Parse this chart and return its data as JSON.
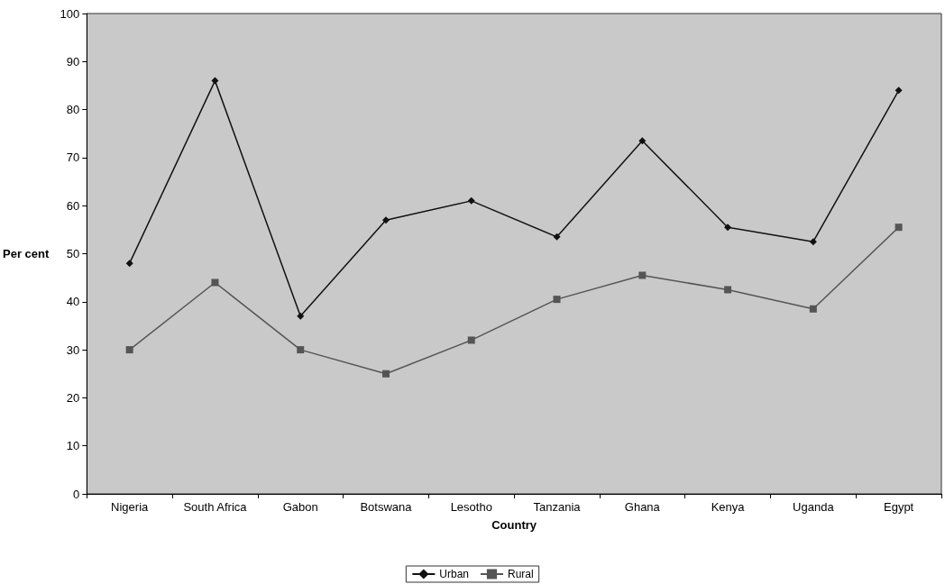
{
  "chart_data": {
    "type": "line",
    "xlabel": "Country",
    "ylabel": "Per cent",
    "categories": [
      "Nigeria",
      "South Africa",
      "Gabon",
      "Botswana",
      "Lesotho",
      "Tanzania",
      "Ghana",
      "Kenya",
      "Uganda",
      "Egypt"
    ],
    "series": [
      {
        "name": "Urban",
        "color": "#111111",
        "marker": "diamond",
        "values": [
          48,
          86,
          37,
          57,
          61,
          53.5,
          73.5,
          55.5,
          52.5,
          84
        ]
      },
      {
        "name": "Rural",
        "color": "#555555",
        "marker": "square",
        "values": [
          30,
          44,
          30,
          25,
          32,
          40.5,
          45.5,
          42.5,
          38.5,
          55.5
        ]
      }
    ],
    "ylim": [
      0,
      100
    ],
    "yticks": [
      0,
      10,
      20,
      30,
      40,
      50,
      60,
      70,
      80,
      90,
      100
    ],
    "grid": false,
    "legend": "bottom"
  }
}
